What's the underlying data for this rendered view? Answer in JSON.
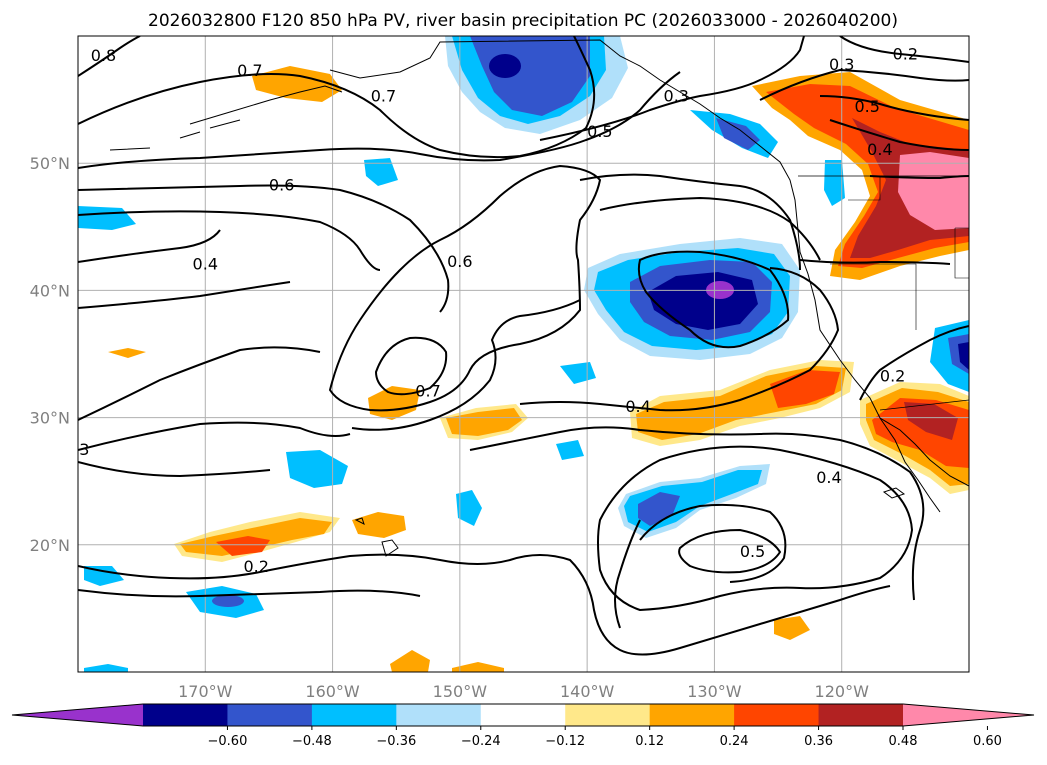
{
  "title": "2026032800 F120 850 hPa PV, river basin precipitation PC (2026033000 - 2026040200)",
  "map": {
    "lon_range": [
      180,
      110
    ],
    "lat_range": [
      10,
      60
    ],
    "lon_ticks": [
      {
        "lon": 170,
        "label": "170°W"
      },
      {
        "lon": 160,
        "label": "160°W"
      },
      {
        "lon": 150,
        "label": "150°W"
      },
      {
        "lon": 140,
        "label": "140°W"
      },
      {
        "lon": 130,
        "label": "130°W"
      },
      {
        "lon": 120,
        "label": "120°W"
      }
    ],
    "lat_ticks": [
      {
        "lat": 50,
        "label": "50°N"
      },
      {
        "lat": 40,
        "label": "40°N"
      },
      {
        "lat": 30,
        "label": "30°N"
      },
      {
        "lat": 20,
        "label": "20°N"
      }
    ],
    "grid": true,
    "contour_labels": [
      {
        "text": "0.8",
        "lon": 178,
        "lat": 58.2
      },
      {
        "text": "0.7",
        "lon": 166.5,
        "lat": 57.0
      },
      {
        "text": "0.7",
        "lon": 156,
        "lat": 55.0
      },
      {
        "text": "0.6",
        "lon": 164,
        "lat": 48.0
      },
      {
        "text": "0.4",
        "lon": 170,
        "lat": 41.8
      },
      {
        "text": "0.6",
        "lon": 150,
        "lat": 42.0
      },
      {
        "text": "0.5",
        "lon": 139,
        "lat": 52.2
      },
      {
        "text": "0.3",
        "lon": 133,
        "lat": 55.0
      },
      {
        "text": "0.3",
        "lon": 120,
        "lat": 57.5
      },
      {
        "text": "0.2",
        "lon": 115,
        "lat": 58.3
      },
      {
        "text": "0.5",
        "lon": 118,
        "lat": 54.2
      },
      {
        "text": "0.4",
        "lon": 117,
        "lat": 50.8
      },
      {
        "text": "0.7",
        "lon": 152.5,
        "lat": 31.8
      },
      {
        "text": "0.4",
        "lon": 136,
        "lat": 30.6
      },
      {
        "text": "0.4",
        "lon": 121,
        "lat": 25.0
      },
      {
        "text": "0.5",
        "lon": 127,
        "lat": 19.2
      },
      {
        "text": "0.2",
        "lon": 166,
        "lat": 18.0
      },
      {
        "text": "0.2",
        "lon": 116,
        "lat": 33.0
      },
      {
        "text": "3",
        "lon": 179.5,
        "lat": 27.2
      }
    ]
  },
  "colorbar": {
    "tick_labels": [
      "−0.60",
      "−0.48",
      "−0.36",
      "−0.24",
      "−0.12",
      "0.12",
      "0.24",
      "0.36",
      "0.48",
      "0.60"
    ],
    "colors": [
      "#9932cc",
      "#00008b",
      "#3355cc",
      "#00bfff",
      "#b0e0fa",
      "#ffffff",
      "#ffe88a",
      "#ffa500",
      "#ff4500",
      "#b22222",
      "#ff88aa"
    ]
  }
}
